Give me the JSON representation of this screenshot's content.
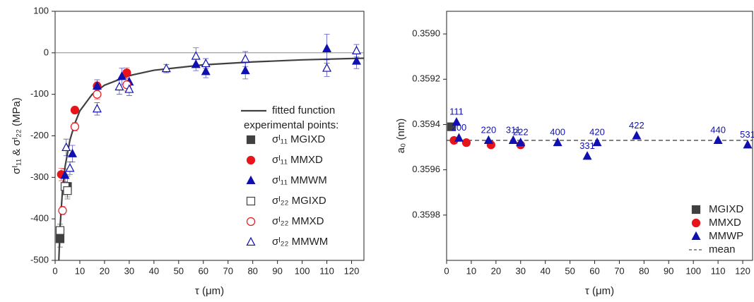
{
  "chart_data": [
    {
      "type": "scatter",
      "xlabel": "τ (μm)",
      "ylabel": "σᴵ₁₁ & σᴵ₂₂ (MPa)",
      "xlim": [
        0,
        125
      ],
      "ylim": [
        -500,
        100
      ],
      "xticks": [
        0,
        10,
        20,
        30,
        40,
        50,
        60,
        70,
        80,
        90,
        100,
        110,
        120
      ],
      "yticks": [
        -500,
        -400,
        -300,
        -200,
        -100,
        0,
        100
      ],
      "reference_line": 0,
      "legend": "right",
      "fit": {
        "name": "fitted function",
        "color": "#404040",
        "x": [
          1.5,
          2,
          3,
          4,
          6,
          8,
          10,
          15,
          20,
          30,
          40,
          60,
          80,
          100,
          125
        ],
        "y": [
          -500,
          -420,
          -330,
          -275,
          -210,
          -170,
          -140,
          -100,
          -78,
          -55,
          -42,
          -29,
          -22,
          -17,
          -13
        ]
      },
      "legend_heading": "experimental points:",
      "series": [
        {
          "name": "σᴵ₁₁ MGIXD",
          "color": "#404040",
          "marker": "square",
          "filled": true,
          "x": [
            2,
            5
          ],
          "values": [
            -448,
            -322
          ],
          "errors": [
            20,
            25
          ]
        },
        {
          "name": "σᴵ₁₁ MMXD",
          "color": "#e8141a",
          "marker": "circle",
          "filled": true,
          "x": [
            2.5,
            8,
            17,
            29
          ],
          "values": [
            -293,
            -138,
            -80,
            -48
          ],
          "errors": [
            15,
            8,
            10,
            12
          ]
        },
        {
          "name": "σᴵ₁₁ MMWM",
          "color": "#1010b0",
          "marker": "triangle",
          "filled": true,
          "x": [
            4,
            7,
            17,
            27,
            30,
            57,
            61,
            77,
            110,
            122
          ],
          "values": [
            -295,
            -243,
            -80,
            -57,
            -70,
            -28,
            -45,
            -43,
            10,
            -20
          ],
          "errors": [
            15,
            20,
            15,
            20,
            15,
            15,
            15,
            20,
            35,
            18
          ]
        },
        {
          "name": "σᴵ₂₂ MGIXD",
          "color": "#404040",
          "marker": "square",
          "filled": false,
          "x": [
            2,
            4,
            5
          ],
          "values": [
            -428,
            -322,
            -332
          ],
          "errors": [
            15,
            20,
            20
          ]
        },
        {
          "name": "σᴵ₂₂ MMXD",
          "color": "#e8141a",
          "marker": "circle",
          "filled": false,
          "x": [
            3,
            8,
            17,
            29
          ],
          "values": [
            -380,
            -178,
            -100,
            -77
          ],
          "errors": [
            10,
            10,
            12,
            15
          ]
        },
        {
          "name": "σᴵ₂₂ MMWM",
          "color": "#1010b0",
          "marker": "triangle",
          "filled": false,
          "x": [
            4.5,
            6,
            17,
            26,
            30,
            45,
            57,
            61,
            77,
            110,
            122
          ],
          "values": [
            -228,
            -278,
            -135,
            -82,
            -88,
            -38,
            -8,
            -26,
            -15,
            -37,
            5
          ],
          "errors": [
            20,
            15,
            15,
            18,
            15,
            10,
            20,
            12,
            18,
            20,
            15
          ]
        }
      ]
    },
    {
      "type": "scatter",
      "xlabel": "τ (μm)",
      "ylabel": "a₀ (nm)",
      "xlim": [
        0,
        124
      ],
      "ylim": [
        0.3589,
        0.36
      ],
      "y_reversed": true,
      "xticks": [
        0,
        10,
        20,
        30,
        40,
        50,
        60,
        70,
        80,
        90,
        100,
        110,
        120
      ],
      "yticks": [
        {
          "value": 0.359,
          "label": "0.3590"
        },
        {
          "value": 0.3592,
          "label": "0.3592"
        },
        {
          "value": 0.3594,
          "label": "0.3594"
        },
        {
          "value": 0.3596,
          "label": "0.3596"
        },
        {
          "value": 0.3598,
          "label": "0.3598"
        }
      ],
      "legend": "lower right",
      "mean_line": {
        "name": "mean",
        "value": 0.35947,
        "color": "#222222"
      },
      "series": [
        {
          "name": "MGIXD",
          "color": "#404040",
          "marker": "square",
          "filled": true,
          "x": [
            2
          ],
          "values": [
            0.35941
          ]
        },
        {
          "name": "MMXD",
          "color": "#e8141a",
          "marker": "circle",
          "filled": true,
          "x": [
            3,
            8,
            18,
            30
          ],
          "values": [
            0.35947,
            0.35948,
            0.35949,
            0.35949
          ]
        },
        {
          "name": "MMWP",
          "color": "#1010b0",
          "marker": "triangle",
          "filled": true,
          "x": [
            4,
            5,
            17,
            27,
            30,
            45,
            57,
            61,
            77,
            110,
            122
          ],
          "values": [
            0.35939,
            0.35946,
            0.35947,
            0.35947,
            0.35948,
            0.35948,
            0.35954,
            0.35948,
            0.35945,
            0.35947,
            0.35949
          ],
          "labels": [
            "111",
            "200",
            "220",
            "311",
            "222",
            "400",
            "331",
            "420",
            "422",
            "440",
            "531"
          ]
        }
      ]
    }
  ]
}
